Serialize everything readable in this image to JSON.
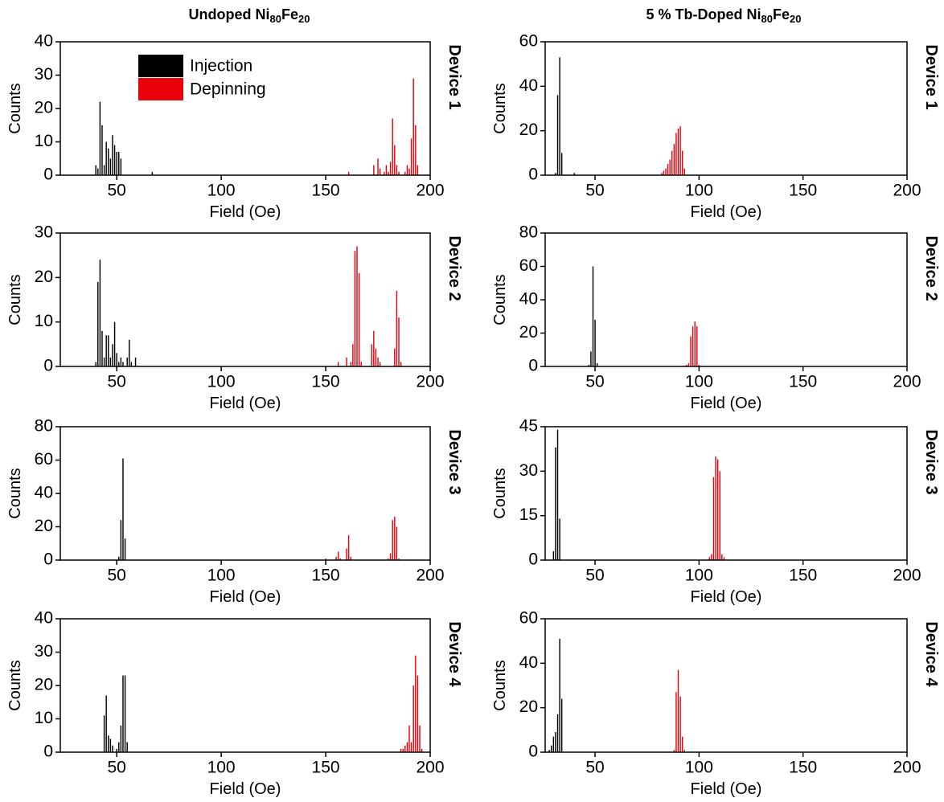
{
  "columns": [
    [
      "Undoped Ni",
      "80",
      "Fe",
      "20"
    ],
    [
      "5 % Tb-Doped Ni",
      "80",
      "Fe",
      "20"
    ]
  ],
  "chart_data": [
    {
      "type": "bar",
      "device": "Device 1",
      "xlabel": "Field (Oe)",
      "ylabel": "Counts",
      "xlim": [
        23,
        200
      ],
      "xticks": [
        50,
        100,
        150,
        200
      ],
      "ylim": [
        0,
        40
      ],
      "yticks": [
        0,
        10,
        20,
        30,
        40
      ],
      "legend": "upper left",
      "series": [
        {
          "name": "Injection",
          "color": "#000000",
          "x": [
            40,
            41,
            42,
            43,
            44,
            45,
            46,
            47,
            48,
            49,
            50,
            51,
            52,
            67
          ],
          "values": [
            3,
            2,
            22,
            15,
            3,
            10,
            8,
            5,
            12,
            9,
            7,
            7,
            5,
            1
          ]
        },
        {
          "name": "Depinning",
          "color": "#e8000b",
          "x": [
            161,
            173,
            175,
            176,
            178,
            179,
            180,
            181,
            182,
            183,
            184,
            185,
            188,
            189,
            190,
            191,
            192,
            193,
            194
          ],
          "values": [
            1,
            3,
            5,
            2,
            1,
            3,
            1,
            4,
            17,
            9,
            3,
            1,
            1,
            3,
            2,
            11,
            29,
            15,
            3
          ]
        }
      ]
    },
    {
      "type": "bar",
      "device": "Device 2",
      "xlabel": "Field (Oe)",
      "ylabel": "Counts",
      "xlim": [
        23,
        200
      ],
      "xticks": [
        50,
        100,
        150,
        200
      ],
      "ylim": [
        0,
        30
      ],
      "yticks": [
        0,
        10,
        20,
        30
      ],
      "series": [
        {
          "color": "#000000",
          "x": [
            40,
            41,
            42,
            43,
            44,
            45,
            46,
            47,
            48,
            49,
            50,
            51,
            52,
            53,
            55,
            56,
            57,
            59
          ],
          "values": [
            1,
            19,
            24,
            8,
            2,
            7,
            7,
            2,
            5,
            10,
            3,
            1,
            2,
            1,
            2,
            6,
            1,
            2
          ]
        },
        {
          "color": "#e8000b",
          "x": [
            156,
            160,
            162,
            163,
            164,
            165,
            166,
            167,
            172,
            173,
            174,
            175,
            176,
            183,
            184,
            185,
            186
          ],
          "values": [
            1,
            2,
            1,
            5,
            26,
            27,
            21,
            1,
            5,
            8,
            4,
            2,
            1,
            4,
            17,
            11,
            1
          ]
        }
      ]
    },
    {
      "type": "bar",
      "device": "Device 3",
      "xlabel": "Field (Oe)",
      "ylabel": "Counts",
      "xlim": [
        23,
        200
      ],
      "xticks": [
        50,
        100,
        150,
        200
      ],
      "ylim": [
        0,
        80
      ],
      "yticks": [
        0,
        20,
        40,
        60,
        80
      ],
      "series": [
        {
          "color": "#000000",
          "x": [
            51,
            52,
            53,
            54
          ],
          "values": [
            2,
            24,
            61,
            13
          ]
        },
        {
          "color": "#e8000b",
          "x": [
            150,
            155,
            156,
            157,
            160,
            161,
            162,
            180,
            181,
            182,
            183,
            184,
            185
          ],
          "values": [
            1,
            2,
            5,
            1,
            7,
            15,
            2,
            1,
            4,
            24,
            26,
            20,
            1
          ]
        }
      ]
    },
    {
      "type": "bar",
      "device": "Device 4",
      "xlabel": "Field (Oe)",
      "ylabel": "Counts",
      "xlim": [
        23,
        200
      ],
      "xticks": [
        50,
        100,
        150,
        200
      ],
      "ylim": [
        0,
        40
      ],
      "yticks": [
        0,
        10,
        20,
        30,
        40
      ],
      "series": [
        {
          "color": "#000000",
          "x": [
            44,
            45,
            46,
            47,
            48,
            50,
            51,
            52,
            53,
            54,
            55
          ],
          "values": [
            11,
            17,
            5,
            4,
            2,
            1,
            3,
            8,
            23,
            23,
            3
          ]
        },
        {
          "color": "#e8000b",
          "x": [
            186,
            187,
            188,
            189,
            190,
            191,
            192,
            193,
            194,
            195,
            196
          ],
          "values": [
            1,
            1,
            2,
            3,
            8,
            3,
            20,
            29,
            23,
            8,
            1
          ]
        }
      ]
    },
    {
      "type": "bar",
      "device": "Device 1",
      "xlabel": "Field (Oe)",
      "ylabel": "Counts",
      "xlim": [
        26,
        200
      ],
      "xticks": [
        50,
        100,
        150,
        200
      ],
      "ylim": [
        0,
        60
      ],
      "yticks": [
        0,
        20,
        40,
        60
      ],
      "series": [
        {
          "color": "#000000",
          "x": [
            31,
            32,
            33,
            34,
            40
          ],
          "values": [
            1,
            36,
            53,
            10,
            1
          ]
        },
        {
          "color": "#e8000b",
          "x": [
            82,
            83,
            84,
            85,
            86,
            87,
            88,
            89,
            90,
            91,
            92,
            93
          ],
          "values": [
            1,
            2,
            3,
            5,
            7,
            11,
            14,
            19,
            21,
            22,
            11,
            3
          ]
        }
      ]
    },
    {
      "type": "bar",
      "device": "Device 2",
      "xlabel": "Field (Oe)",
      "ylabel": "Counts",
      "xlim": [
        26,
        200
      ],
      "xticks": [
        50,
        100,
        150,
        200
      ],
      "ylim": [
        0,
        80
      ],
      "yticks": [
        0,
        20,
        40,
        60,
        80
      ],
      "series": [
        {
          "color": "#000000",
          "x": [
            47,
            48,
            49,
            50,
            51
          ],
          "values": [
            1,
            9,
            60,
            28,
            2
          ]
        },
        {
          "color": "#e8000b",
          "x": [
            94,
            95,
            96,
            97,
            98,
            99,
            100
          ],
          "values": [
            1,
            2,
            18,
            24,
            27,
            24,
            1
          ]
        }
      ]
    },
    {
      "type": "bar",
      "device": "Device 3",
      "xlabel": "Field (Oe)",
      "ylabel": "Counts",
      "xlim": [
        26,
        200
      ],
      "xticks": [
        50,
        100,
        150,
        200
      ],
      "ylim": [
        0,
        45
      ],
      "yticks": [
        0,
        15,
        30,
        45
      ],
      "series": [
        {
          "color": "#000000",
          "x": [
            30,
            31,
            32,
            33
          ],
          "values": [
            3,
            38,
            44,
            14
          ]
        },
        {
          "color": "#e8000b",
          "x": [
            105,
            106,
            107,
            108,
            109,
            110,
            111,
            112
          ],
          "values": [
            1,
            2,
            28,
            35,
            34,
            30,
            2,
            1
          ]
        }
      ]
    },
    {
      "type": "bar",
      "device": "Device 4",
      "xlabel": "Field (Oe)",
      "ylabel": "Counts",
      "xlim": [
        26,
        200
      ],
      "xticks": [
        50,
        100,
        150,
        200
      ],
      "ylim": [
        0,
        60
      ],
      "yticks": [
        0,
        20,
        40,
        60
      ],
      "series": [
        {
          "color": "#000000",
          "x": [
            28,
            29,
            30,
            31,
            32,
            33,
            34
          ],
          "values": [
            1,
            3,
            7,
            9,
            17,
            51,
            24
          ]
        },
        {
          "color": "#e8000b",
          "x": [
            88,
            89,
            90,
            91,
            92,
            93
          ],
          "values": [
            1,
            27,
            37,
            25,
            7,
            1
          ]
        }
      ]
    }
  ]
}
